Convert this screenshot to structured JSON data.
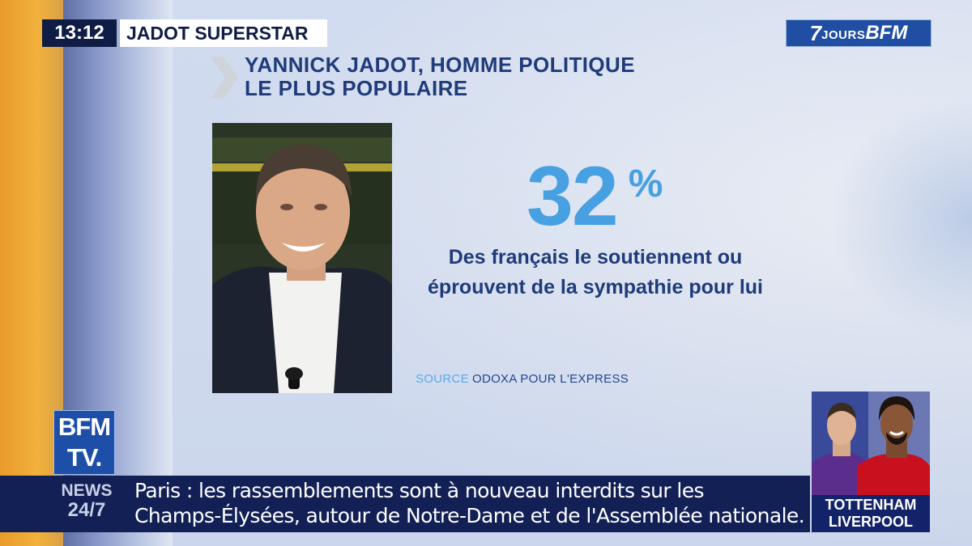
{
  "header": {
    "time": "13:12",
    "show_title": "JADOT SUPERSTAR"
  },
  "channel_logo": {
    "seven": "7",
    "jours": "JOURS",
    "bfm": "BFM"
  },
  "graphic": {
    "headline_line1": "YANNICK JADOT, HOMME POLITIQUE",
    "headline_line2": "LE PLUS POPULAIRE",
    "stat_value": "32",
    "stat_unit": "%",
    "caption_line1": "Des français le soutiennent ou",
    "caption_line2": "éprouvent de la sympathie pour lui",
    "source_label": "SOURCE",
    "source_value": "ODOXA POUR L'EXPRESS"
  },
  "bfmtv_logo": {
    "line1": "BFM",
    "line2": "TV."
  },
  "ticker": {
    "label_line1": "NEWS",
    "label_line2": "24/7",
    "line1": "Paris : les rassemblements sont à nouveau interdits sur les",
    "line2": "Champs-Élysées, autour de Notre-Dame et de l'Assemblée nationale."
  },
  "promo": {
    "line1": "TOTTENHAM",
    "line2": "LIVERPOOL"
  },
  "colors": {
    "navy": "#0f1c46",
    "headline_blue": "#1f3b7a",
    "stat_blue": "#46a0e2",
    "bfm_blue": "#1d4fa8",
    "ticker_bg": "#122056"
  }
}
